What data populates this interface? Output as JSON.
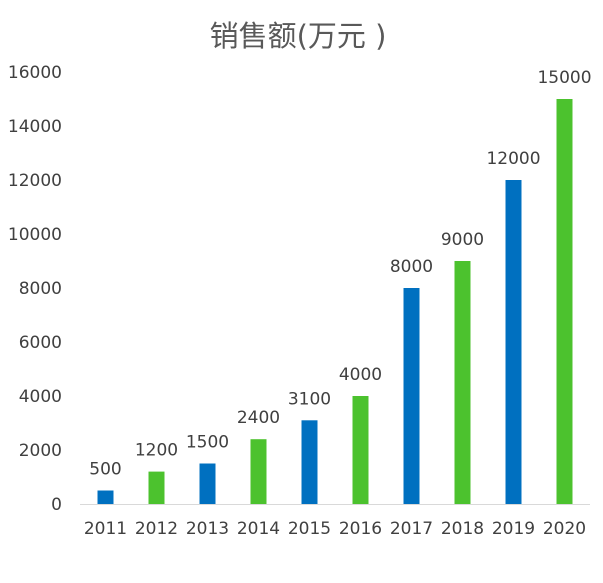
{
  "chart_data": {
    "type": "bar",
    "title": "销售额(万元 )",
    "xlabel": "",
    "ylabel": "",
    "categories": [
      "2011",
      "2012",
      "2013",
      "2014",
      "2015",
      "2016",
      "2017",
      "2018",
      "2019",
      "2020"
    ],
    "values": [
      500,
      1200,
      1500,
      2400,
      3100,
      4000,
      8000,
      9000,
      12000,
      15000
    ],
    "data_labels": [
      "500",
      "1200",
      "1500",
      "2400",
      "3100",
      "4000",
      "8000",
      "9000",
      "12000",
      "15000"
    ],
    "ylim": [
      0,
      16000
    ],
    "yticks": [
      "0",
      "2000",
      "4000",
      "6000",
      "8000",
      "10000",
      "12000",
      "14000",
      "16000"
    ],
    "grid": false,
    "legend": "none",
    "bar_colors": [
      "#0070C0",
      "#4CC22E",
      "#0070C0",
      "#4CC22E",
      "#0070C0",
      "#4CC22E",
      "#0070C0",
      "#4CC22E",
      "#0070C0",
      "#4CC22E"
    ],
    "text_color": "#404040",
    "axis_color": "#D9D9D9"
  }
}
